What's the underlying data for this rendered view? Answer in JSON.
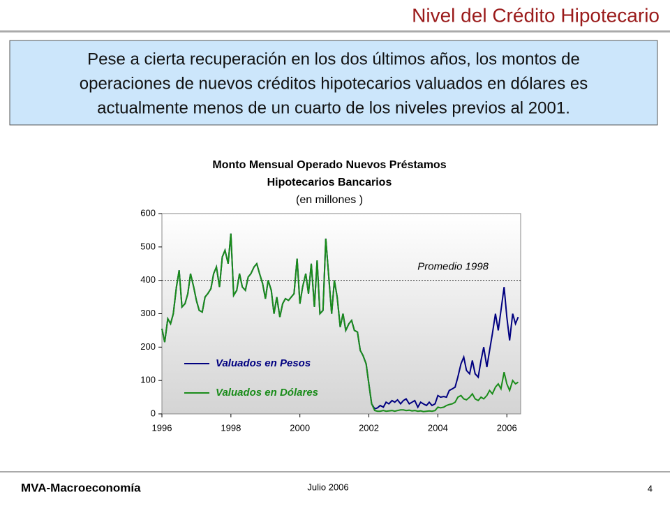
{
  "slide": {
    "title": "Nivel del Crédito Hipotecario",
    "text_box": [
      "Pese a cierta recuperación en los dos últimos años, los montos de",
      "operaciones de nuevos créditos hipotecarios valuados en dólares es",
      "actualmente menos de un cuarto de los niveles previos al 2001."
    ],
    "footer_left": "MVA-Macroeconomía",
    "footer_center": "Julio 2006",
    "page_number": "4"
  },
  "chart_data": {
    "type": "line",
    "title": [
      "Monto Mensual Operado Nuevos Préstamos",
      "Hipotecarios Bancarios",
      "(en millones )"
    ],
    "x": [
      1996,
      1996.08,
      1996.17,
      1996.25,
      1996.33,
      1996.42,
      1996.5,
      1996.58,
      1996.67,
      1996.75,
      1996.83,
      1996.92,
      1997,
      1997.08,
      1997.17,
      1997.25,
      1997.33,
      1997.42,
      1997.5,
      1997.58,
      1997.67,
      1997.75,
      1997.83,
      1997.92,
      1998,
      1998.08,
      1998.17,
      1998.25,
      1998.33,
      1998.42,
      1998.5,
      1998.58,
      1998.67,
      1998.75,
      1998.83,
      1998.92,
      1999,
      1999.08,
      1999.17,
      1999.25,
      1999.33,
      1999.42,
      1999.5,
      1999.58,
      1999.67,
      1999.75,
      1999.83,
      1999.92,
      2000,
      2000.08,
      2000.17,
      2000.25,
      2000.33,
      2000.42,
      2000.5,
      2000.58,
      2000.67,
      2000.75,
      2000.83,
      2000.92,
      2001,
      2001.08,
      2001.17,
      2001.25,
      2001.33,
      2001.42,
      2001.5,
      2001.58,
      2001.67,
      2001.75,
      2001.83,
      2001.92,
      2002,
      2002.08,
      2002.17,
      2002.25,
      2002.33,
      2002.42,
      2002.5,
      2002.58,
      2002.67,
      2002.75,
      2002.83,
      2002.92,
      2003,
      2003.08,
      2003.17,
      2003.25,
      2003.33,
      2003.42,
      2003.5,
      2003.58,
      2003.67,
      2003.75,
      2003.83,
      2003.92,
      2004,
      2004.08,
      2004.17,
      2004.25,
      2004.33,
      2004.42,
      2004.5,
      2004.58,
      2004.67,
      2004.75,
      2004.83,
      2004.92,
      2005,
      2005.08,
      2005.17,
      2005.25,
      2005.33,
      2005.42,
      2005.5,
      2005.58,
      2005.67,
      2005.75,
      2005.83,
      2005.92,
      2006,
      2006.08,
      2006.17,
      2006.25,
      2006.33
    ],
    "series": [
      {
        "name": "Valuados en Pesos",
        "color": "#000080",
        "values": [
          255,
          215,
          285,
          270,
          300,
          380,
          430,
          320,
          330,
          360,
          420,
          380,
          340,
          310,
          305,
          350,
          360,
          375,
          420,
          440,
          380,
          470,
          490,
          450,
          540,
          355,
          370,
          420,
          380,
          370,
          410,
          420,
          440,
          450,
          420,
          390,
          345,
          400,
          370,
          300,
          350,
          290,
          330,
          345,
          340,
          350,
          360,
          465,
          330,
          380,
          420,
          360,
          450,
          320,
          460,
          300,
          310,
          525,
          420,
          300,
          400,
          350,
          260,
          300,
          250,
          270,
          280,
          250,
          245,
          190,
          175,
          150,
          90,
          30,
          15,
          18,
          25,
          20,
          35,
          30,
          40,
          35,
          42,
          30,
          40,
          45,
          30,
          35,
          40,
          20,
          35,
          30,
          25,
          35,
          25,
          30,
          55,
          50,
          52,
          50,
          70,
          75,
          80,
          110,
          150,
          170,
          130,
          120,
          160,
          120,
          110,
          160,
          200,
          140,
          190,
          240,
          300,
          250,
          310,
          380,
          290,
          220,
          300,
          270,
          290
        ]
      },
      {
        "name": "Valuados en Dólares",
        "color": "#1a8c1a",
        "values": [
          255,
          215,
          285,
          270,
          300,
          380,
          430,
          320,
          330,
          360,
          420,
          380,
          340,
          310,
          305,
          350,
          360,
          375,
          420,
          440,
          380,
          470,
          490,
          450,
          540,
          355,
          370,
          420,
          380,
          370,
          410,
          420,
          440,
          450,
          420,
          390,
          345,
          400,
          370,
          300,
          350,
          290,
          330,
          345,
          340,
          350,
          360,
          465,
          330,
          380,
          420,
          360,
          450,
          320,
          460,
          300,
          310,
          525,
          420,
          300,
          400,
          350,
          260,
          300,
          250,
          270,
          280,
          250,
          245,
          190,
          175,
          150,
          90,
          30,
          10,
          8,
          8,
          10,
          8,
          9,
          10,
          8,
          10,
          12,
          12,
          10,
          11,
          9,
          10,
          8,
          9,
          7,
          8,
          9,
          8,
          10,
          20,
          18,
          20,
          25,
          28,
          30,
          35,
          50,
          55,
          45,
          42,
          50,
          60,
          45,
          40,
          50,
          45,
          55,
          70,
          60,
          80,
          90,
          75,
          125,
          90,
          70,
          100,
          90,
          95
        ]
      }
    ],
    "reference_line": {
      "value": 400,
      "label": "Promedio 1998"
    },
    "xlim": [
      1996,
      2006.4
    ],
    "xticks": [
      1996,
      1998,
      2000,
      2002,
      2004,
      2006
    ],
    "ylim": [
      0,
      600
    ],
    "yticks": [
      0,
      100,
      200,
      300,
      400,
      500,
      600
    ],
    "legend": "lower left"
  }
}
